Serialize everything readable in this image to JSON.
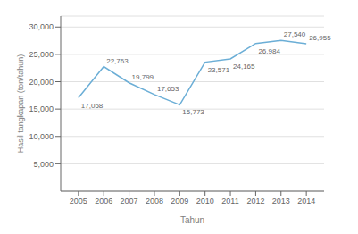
{
  "chart_data": {
    "type": "line",
    "xlabel": "Tahun",
    "ylabel": "Hasil tangkapan (ton/tahun)",
    "x": [
      2005,
      2006,
      2007,
      2008,
      2009,
      2010,
      2011,
      2012,
      2013,
      2014
    ],
    "values": [
      17058,
      22763,
      19799,
      17653,
      15773,
      23571,
      24165,
      26984,
      27540,
      26955
    ],
    "value_labels": [
      "17,058",
      "22,763",
      "19,799",
      "17,653",
      "15,773",
      "23,571",
      "24,165",
      "26,984",
      "27,540",
      "26,955"
    ],
    "color": "#6baed6",
    "xlim": [
      2004.3,
      2014.7
    ],
    "xticks": [
      2005,
      2006,
      2007,
      2008,
      2009,
      2010,
      2011,
      2012,
      2013,
      2014
    ],
    "ylim": [
      0,
      32000
    ],
    "yticks": [
      {
        "value": 5000,
        "label": "5,000"
      },
      {
        "value": 10000,
        "label": "10,000"
      },
      {
        "value": 15000,
        "label": "15,000"
      },
      {
        "value": 20000,
        "label": "20,000"
      },
      {
        "value": 25000,
        "label": "25,000"
      },
      {
        "value": 30000,
        "label": "30,000"
      }
    ],
    "grid": true,
    "data_labels": true
  }
}
